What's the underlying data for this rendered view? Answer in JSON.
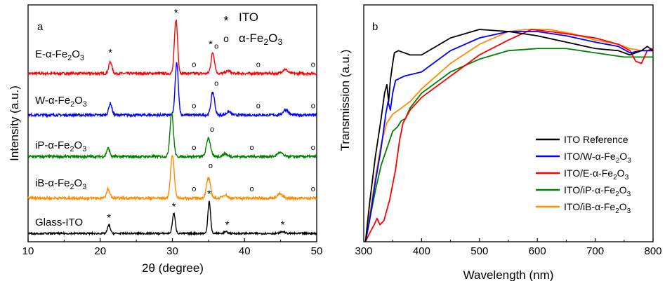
{
  "chart_data": [
    {
      "panel": "a",
      "type": "line",
      "xlabel": "2θ (degree)",
      "ylabel": "Intensity (a.u.)",
      "xlim": [
        10,
        50
      ],
      "xticks": [
        10,
        20,
        30,
        40,
        50
      ],
      "legend": [
        {
          "symbol": "*",
          "label": "ITO"
        },
        {
          "symbol": "o",
          "label": "α-Fe₂O₃"
        }
      ],
      "series": [
        {
          "label": "E-α-Fe₂O₃",
          "color": "#ff0000",
          "baseline": 3.9,
          "noise": 0.06,
          "peaks": [
            {
              "x": 21.4,
              "h": 0.28,
              "w": 0.22
            },
            {
              "x": 30.5,
              "h": 1.3,
              "w": 0.22
            },
            {
              "x": 35.6,
              "h": 0.5,
              "w": 0.24
            },
            {
              "x": 37.7,
              "h": 0.06,
              "w": 0.3
            },
            {
              "x": 45.6,
              "h": 0.1,
              "w": 0.35
            }
          ],
          "markers": [
            {
              "x": 21.4,
              "sym": "*",
              "off": 0.42
            },
            {
              "x": 30.5,
              "sym": "*",
              "off": 1.38
            },
            {
              "x": 35.3,
              "sym": "*",
              "off": 0.62
            },
            {
              "x": 36.1,
              "sym": "o",
              "off": 0.6
            },
            {
              "x": 33.0,
              "sym": "o",
              "off": 0.16
            },
            {
              "x": 41.9,
              "sym": "o",
              "off": 0.16
            },
            {
              "x": 49.5,
              "sym": "o",
              "off": 0.16
            }
          ]
        },
        {
          "label": "W-α-Fe₂O₃",
          "color": "#0000ff",
          "baseline": 2.9,
          "noise": 0.06,
          "peaks": [
            {
              "x": 21.4,
              "h": 0.28,
              "w": 0.22
            },
            {
              "x": 30.6,
              "h": 1.25,
              "w": 0.22
            },
            {
              "x": 35.6,
              "h": 0.55,
              "w": 0.25
            },
            {
              "x": 37.8,
              "h": 0.08,
              "w": 0.3
            },
            {
              "x": 45.7,
              "h": 0.13,
              "w": 0.35
            }
          ],
          "markers": [
            {
              "x": 36.1,
              "sym": "o",
              "off": 0.7
            },
            {
              "x": 33.0,
              "sym": "o",
              "off": 0.16
            },
            {
              "x": 41.9,
              "sym": "o",
              "off": 0.16
            },
            {
              "x": 49.5,
              "sym": "o",
              "off": 0.16
            }
          ]
        },
        {
          "label": "iP-α-Fe₂O₃",
          "color": "#008000",
          "baseline": 1.9,
          "noise": 0.06,
          "peaks": [
            {
              "x": 21.1,
              "h": 0.2,
              "w": 0.22
            },
            {
              "x": 29.9,
              "h": 1.05,
              "w": 0.24
            },
            {
              "x": 35.0,
              "h": 0.45,
              "w": 0.28
            },
            {
              "x": 37.3,
              "h": 0.07,
              "w": 0.3
            },
            {
              "x": 44.9,
              "h": 0.1,
              "w": 0.35
            }
          ],
          "markers": [
            {
              "x": 35.5,
              "sym": "o",
              "off": 0.6
            },
            {
              "x": 33.0,
              "sym": "o",
              "off": 0.16
            },
            {
              "x": 41.0,
              "sym": "o",
              "off": 0.16
            },
            {
              "x": 49.5,
              "sym": "o",
              "off": 0.16
            }
          ]
        },
        {
          "label": "iB-α-Fe₂O₃",
          "color": "#ff8c00",
          "baseline": 0.9,
          "noise": 0.06,
          "peaks": [
            {
              "x": 21.1,
              "h": 0.22,
              "w": 0.22
            },
            {
              "x": 30.0,
              "h": 1.05,
              "w": 0.25
            },
            {
              "x": 35.0,
              "h": 0.48,
              "w": 0.28
            },
            {
              "x": 37.3,
              "h": 0.08,
              "w": 0.3
            },
            {
              "x": 44.9,
              "h": 0.1,
              "w": 0.35
            }
          ],
          "markers": [
            {
              "x": 35.3,
              "sym": "o",
              "off": 0.72
            },
            {
              "x": 33.0,
              "sym": "o",
              "off": 0.16
            },
            {
              "x": 41.0,
              "sym": "o",
              "off": 0.16
            },
            {
              "x": 49.5,
              "sym": "o",
              "off": 0.16
            }
          ]
        },
        {
          "label": "Glass-ITO",
          "color": "#000000",
          "baseline": 0.05,
          "noise": 0.04,
          "peaks": [
            {
              "x": 21.2,
              "h": 0.2,
              "w": 0.2
            },
            {
              "x": 30.2,
              "h": 0.48,
              "w": 0.2
            },
            {
              "x": 35.1,
              "h": 0.78,
              "w": 0.18
            },
            {
              "x": 37.4,
              "h": 0.04,
              "w": 0.25
            },
            {
              "x": 45.3,
              "h": 0.04,
              "w": 0.3
            }
          ],
          "markers": [
            {
              "x": 21.2,
              "sym": "*",
              "off": 0.3
            },
            {
              "x": 30.2,
              "sym": "*",
              "off": 0.57
            },
            {
              "x": 35.1,
              "sym": "*",
              "off": 0.87
            },
            {
              "x": 37.6,
              "sym": "*",
              "off": 0.13
            },
            {
              "x": 45.3,
              "sym": "*",
              "off": 0.13
            }
          ]
        }
      ]
    },
    {
      "panel": "b",
      "type": "line",
      "xlabel": "Wavelength (nm)",
      "ylabel": "Transmission (a.u.)",
      "xlim": [
        300,
        800
      ],
      "ylim": [
        0,
        100
      ],
      "xticks": [
        300,
        400,
        500,
        600,
        700,
        800
      ],
      "series": [
        {
          "name": "ITO Reference",
          "color": "#000000",
          "points": [
            [
              303,
              0
            ],
            [
              310,
              18
            ],
            [
              320,
              40
            ],
            [
              330,
              58
            ],
            [
              336,
              70
            ],
            [
              340,
              74
            ],
            [
              343,
              66
            ],
            [
              346,
              76
            ],
            [
              350,
              84
            ],
            [
              353,
              89
            ],
            [
              360,
              90
            ],
            [
              380,
              88
            ],
            [
              400,
              88
            ],
            [
              450,
              96
            ],
            [
              500,
              100
            ],
            [
              550,
              99
            ],
            [
              600,
              97
            ],
            [
              650,
              94
            ],
            [
              700,
              91
            ],
            [
              740,
              90
            ],
            [
              760,
              88
            ],
            [
              780,
              90
            ],
            [
              790,
              92
            ],
            [
              800,
              90
            ]
          ]
        },
        {
          "name": "ITO/W-α-Fe₂O₃",
          "color": "#0000ff",
          "points": [
            [
              303,
              0
            ],
            [
              310,
              10
            ],
            [
              320,
              28
            ],
            [
              330,
              44
            ],
            [
              338,
              60
            ],
            [
              342,
              66
            ],
            [
              346,
              62
            ],
            [
              350,
              70
            ],
            [
              355,
              76
            ],
            [
              370,
              78
            ],
            [
              400,
              80
            ],
            [
              450,
              90
            ],
            [
              500,
              96
            ],
            [
              550,
              99
            ],
            [
              600,
              99
            ],
            [
              650,
              97
            ],
            [
              700,
              94
            ],
            [
              740,
              92
            ],
            [
              760,
              89
            ],
            [
              780,
              90
            ],
            [
              800,
              90
            ]
          ]
        },
        {
          "name": "ITO/E-α-Fe₂O₃",
          "color": "#ff0000",
          "points": [
            [
              303,
              0
            ],
            [
              310,
              4
            ],
            [
              318,
              8
            ],
            [
              323,
              11
            ],
            [
              328,
              8
            ],
            [
              335,
              10
            ],
            [
              345,
              20
            ],
            [
              355,
              34
            ],
            [
              362,
              48
            ],
            [
              368,
              56
            ],
            [
              380,
              62
            ],
            [
              400,
              68
            ],
            [
              450,
              78
            ],
            [
              500,
              88
            ],
            [
              550,
              95
            ],
            [
              590,
              100
            ],
            [
              620,
              99
            ],
            [
              650,
              98
            ],
            [
              700,
              96
            ],
            [
              740,
              93
            ],
            [
              760,
              90
            ],
            [
              770,
              85
            ],
            [
              780,
              84
            ],
            [
              790,
              90
            ],
            [
              800,
              91
            ]
          ]
        },
        {
          "name": "ITO/iP-α-Fe₂O₃",
          "color": "#008000",
          "points": [
            [
              303,
              0
            ],
            [
              310,
              10
            ],
            [
              320,
              24
            ],
            [
              330,
              36
            ],
            [
              340,
              44
            ],
            [
              350,
              52
            ],
            [
              358,
              54
            ],
            [
              365,
              57
            ],
            [
              372,
              58
            ],
            [
              380,
              63
            ],
            [
              400,
              70
            ],
            [
              450,
              80
            ],
            [
              500,
              86
            ],
            [
              550,
              90
            ],
            [
              600,
              91
            ],
            [
              650,
              91
            ],
            [
              700,
              89
            ],
            [
              750,
              87
            ],
            [
              800,
              87
            ]
          ]
        },
        {
          "name": "ITO/iB-α-Fe₂O₃",
          "color": "#ff8c00",
          "points": [
            [
              303,
              0
            ],
            [
              310,
              12
            ],
            [
              320,
              30
            ],
            [
              330,
              46
            ],
            [
              340,
              56
            ],
            [
              350,
              60
            ],
            [
              360,
              62
            ],
            [
              370,
              64
            ],
            [
              380,
              66
            ],
            [
              400,
              72
            ],
            [
              450,
              84
            ],
            [
              500,
              93
            ],
            [
              550,
              99
            ],
            [
              580,
              100
            ],
            [
              620,
              100
            ],
            [
              660,
              98
            ],
            [
              700,
              95
            ],
            [
              740,
              93
            ],
            [
              760,
              91
            ],
            [
              780,
              90
            ],
            [
              800,
              90
            ]
          ]
        }
      ]
    }
  ]
}
